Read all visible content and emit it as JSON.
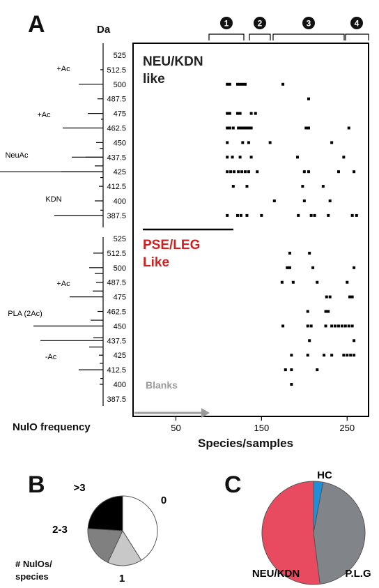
{
  "panels": {
    "a": "A",
    "b": "B",
    "c": "C"
  },
  "chart_data": [
    {
      "type": "heatmap",
      "panel": "A",
      "unit_label": "Da",
      "upper_section": {
        "label_line1": "NEU/KDN",
        "label_line2": "like",
        "mass_ticks": [
          "525",
          "512.5",
          "500",
          "487.5",
          "475",
          "462.5",
          "450",
          "437.5",
          "425",
          "412.5",
          "400",
          "387.5"
        ],
        "annotations": [
          "+Ac",
          "+Ac",
          "NeuAc",
          "KDN"
        ]
      },
      "lower_section": {
        "label_line1": "PSE/LEG",
        "label_line2": "Like",
        "mass_ticks": [
          "525",
          "512.5",
          "500",
          "487.5",
          "475",
          "462.5",
          "450",
          "437.5",
          "425",
          "412.5",
          "400",
          "387.5"
        ],
        "annotations": [
          "+Ac",
          "PLA (2Ac)",
          "-Ac"
        ]
      },
      "xlabel": "Species/samples",
      "x_ticks": [
        "50",
        "150",
        "250"
      ],
      "blanks_label": "Blanks",
      "frequency_label": "NulO frequency",
      "groups": [
        "1",
        "2",
        "3",
        "4"
      ],
      "upper_rows": [
        {
          "mass": 500,
          "x": [
            110,
            113,
            122,
            125,
            128,
            131,
            175
          ]
        },
        {
          "mass": 487.5,
          "x": [
            205
          ]
        },
        {
          "mass": 475,
          "x": [
            110,
            113,
            122,
            125,
            138,
            143
          ]
        },
        {
          "mass": 462.5,
          "x": [
            110,
            113,
            117,
            123,
            126,
            129,
            132,
            135,
            138,
            202,
            205,
            252
          ]
        },
        {
          "mass": 450,
          "x": [
            110,
            128,
            135,
            160,
            232
          ]
        },
        {
          "mass": 437.5,
          "x": [
            110,
            116,
            125,
            138,
            192,
            246
          ]
        },
        {
          "mass": 425,
          "x": [
            110,
            114,
            118,
            123,
            127,
            131,
            135,
            145,
            200,
            205,
            240,
            258
          ]
        },
        {
          "mass": 412.5,
          "x": [
            117,
            133,
            198,
            222
          ]
        },
        {
          "mass": 400,
          "x": [
            165,
            200,
            230
          ]
        },
        {
          "mass": 387.5,
          "x": [
            110,
            122,
            126,
            133,
            150,
            193,
            208,
            212,
            228,
            256,
            261
          ]
        }
      ],
      "lower_rows": [
        {
          "mass": 512.5,
          "x": [
            183,
            206
          ]
        },
        {
          "mass": 500,
          "x": [
            180,
            183,
            210,
            258
          ]
        },
        {
          "mass": 487.5,
          "x": [
            174,
            187,
            215,
            250
          ]
        },
        {
          "mass": 475,
          "x": [
            226,
            230,
            253,
            256
          ]
        },
        {
          "mass": 462.5,
          "x": [
            204,
            225,
            228
          ]
        },
        {
          "mass": 450,
          "x": [
            175,
            204,
            208,
            225,
            232,
            236,
            240,
            244,
            248,
            252,
            256
          ]
        },
        {
          "mass": 437.5,
          "x": [
            206,
            258
          ]
        },
        {
          "mass": 425,
          "x": [
            185,
            204,
            223,
            232,
            246,
            250,
            254,
            258
          ]
        },
        {
          "mass": 412.5,
          "x": [
            178,
            185,
            215
          ]
        },
        {
          "mass": 400,
          "x": [
            185
          ]
        }
      ]
    },
    {
      "type": "pie",
      "panel": "B",
      "categories": [
        "0",
        "1",
        "2-3",
        ">3"
      ],
      "values": [
        0.41,
        0.16,
        0.19,
        0.24
      ],
      "colors": [
        "#ffffff",
        "#c8c8c8",
        "#808080",
        "#000000"
      ],
      "ylabel_line1": "# NulOs/",
      "ylabel_line2": "species"
    },
    {
      "type": "pie",
      "panel": "C",
      "categories": [
        "HC",
        "P.L.G",
        "NEU/KDN"
      ],
      "values": [
        0.03,
        0.45,
        0.52
      ],
      "colors": [
        "#1e8fd8",
        "#818589",
        "#e84a5f"
      ]
    }
  ]
}
